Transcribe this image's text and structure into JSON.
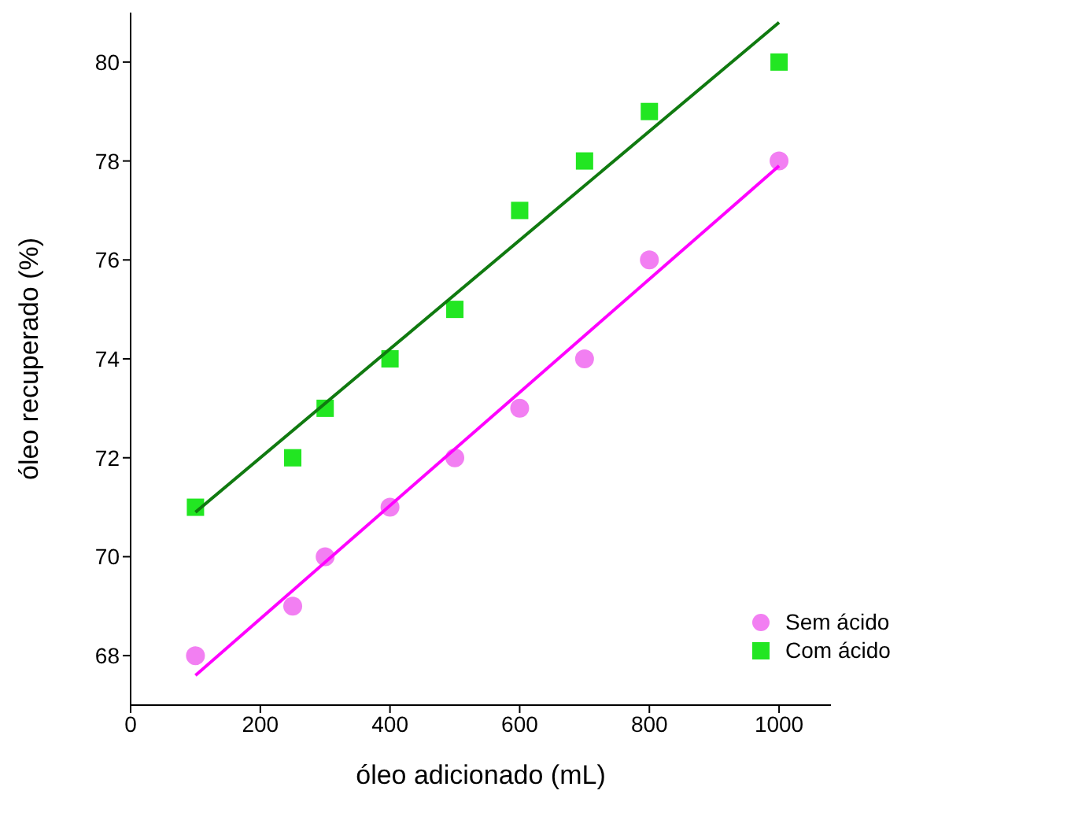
{
  "chart_data": {
    "type": "scatter",
    "xlabel": "óleo adicionado (mL)",
    "ylabel": "óleo recuperado (%)",
    "x": [
      100,
      250,
      300,
      400,
      500,
      600,
      700,
      800,
      1000
    ],
    "series": [
      {
        "name": "Sem ácido",
        "color": "#f27ff2",
        "marker": "circle",
        "values": [
          68,
          69,
          70,
          71,
          72,
          73,
          74,
          76,
          78
        ]
      },
      {
        "name": "Com ácido",
        "color": "#22e622",
        "marker": "square",
        "values": [
          71,
          72,
          73,
          74,
          75,
          77,
          78,
          79,
          80
        ]
      },
      {
        "type": "line",
        "color": "#ff00ff",
        "values": [
          67.6,
          null,
          null,
          null,
          null,
          null,
          null,
          null,
          77.9
        ]
      },
      {
        "type": "line",
        "color": "#107a10",
        "values": [
          70.9,
          null,
          null,
          null,
          null,
          null,
          null,
          null,
          80.8
        ]
      }
    ],
    "xlim": [
      0,
      1080
    ],
    "xticks": [
      0,
      200,
      400,
      600,
      800,
      1000
    ],
    "ylim": [
      67,
      81
    ],
    "yticks": [
      68,
      70,
      72,
      74,
      76,
      78,
      80
    ],
    "grid": false,
    "legend": "bottom right",
    "line_style": "solid"
  }
}
